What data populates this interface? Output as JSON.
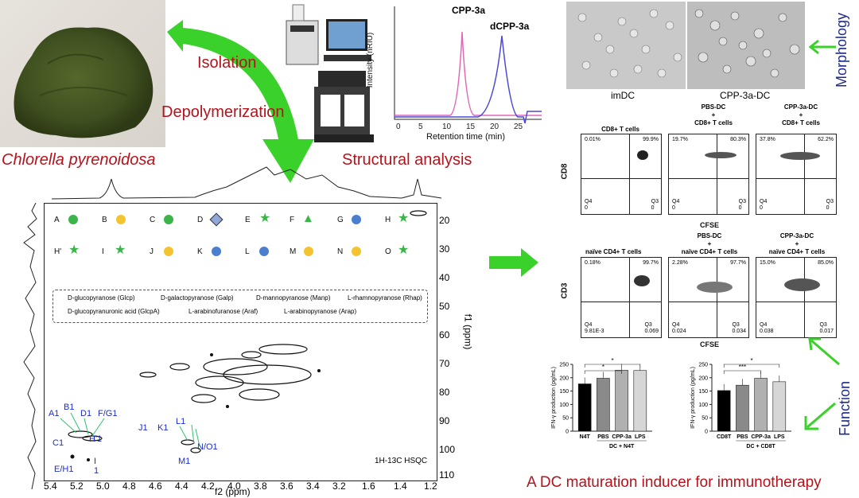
{
  "labels": {
    "organism": "Chlorella pyrenoidosa",
    "step1": "Isolation",
    "step2": "Depolymerization",
    "step3": "Structural analysis",
    "morphology": "Morphology",
    "function": "Function",
    "tagline": "A DC maturation inducer for immunotherapy"
  },
  "hplc": {
    "ylabel": "Intensity (nRIU)",
    "xlabel": "Retention time (min)",
    "peak1": "CPP-3a",
    "peak2": "dCPP-3a",
    "ticks": [
      "0",
      "5",
      "10",
      "15",
      "20",
      "25"
    ],
    "colors": {
      "peak1": "#e066b8",
      "peak2": "#4a4ad6"
    }
  },
  "morph": {
    "left": "imDC",
    "right": "CPP-3a-DC"
  },
  "hsqc": {
    "xlabel": "f2 (ppm)",
    "ylabel": "f1 (ppm)",
    "tag": "1H-13C HSQC",
    "xticks": [
      "5.4",
      "5.2",
      "5.0",
      "4.8",
      "4.6",
      "4.4",
      "4.2",
      "4.0",
      "3.8",
      "3.6",
      "3.4",
      "3.2",
      "1.6",
      "1.4",
      "1.2"
    ],
    "yticks": [
      "20",
      "30",
      "40",
      "50",
      "60",
      "70",
      "80",
      "90",
      "100",
      "110"
    ],
    "residues_row1": [
      "A",
      "B",
      "C",
      "D",
      "E",
      "F",
      "G",
      "H"
    ],
    "residues_row2": [
      "H'",
      "I",
      "J",
      "K",
      "L",
      "M",
      "N",
      "O"
    ],
    "legend": [
      "D-glucopyranose (Glcp)",
      "D-galactopyranose (Galp)",
      "D-mannopyranose (Manp)",
      "L-rhamnopyranose (Rhap)",
      "D-glucopyranuronic acid (GlcpA)",
      "L-arabinofuranose (Araf)",
      "L-arabinopyranose (Arap)"
    ],
    "peaks": [
      "A1",
      "B1",
      "D1",
      "F/G1",
      "C1",
      "H'1",
      "E/H1",
      "I 1",
      "J1",
      "K1",
      "L1",
      "N/O1",
      "M1"
    ]
  },
  "flow_cd8": {
    "ylabel": "CD8",
    "xlabel": "CFSE",
    "panels": [
      {
        "title": "CD8+ T cells",
        "q1": "0.01%",
        "q2": "99.9%",
        "q4": "Q4\n0",
        "q3": "Q3\n0"
      },
      {
        "title": "PBS-DC\n+\nCD8+ T cells",
        "q1": "19.7%",
        "q2": "80.3%",
        "q4": "Q4\n0",
        "q3": "Q3\n0"
      },
      {
        "title": "CPP-3a-DC\n+\nCD8+ T cells",
        "q1": "37.8%",
        "q2": "62.2%",
        "q4": "Q4\n0",
        "q3": "Q3\n0"
      }
    ]
  },
  "flow_cd4": {
    "ylabel": "CD3",
    "xlabel": "CFSE",
    "panels": [
      {
        "title": "naïve CD4+ T cells",
        "q1": "0.18%",
        "q2": "99.7%",
        "q4": "Q4\n9.81E-3",
        "q3": "Q3\n0.069"
      },
      {
        "title": "PBS-DC\n+\nnaïve CD4+ T cells",
        "q1": "2.28%",
        "q2": "97.7%",
        "q4": "Q4\n0.024",
        "q3": "Q3\n0.034"
      },
      {
        "title": "CPP-3a-DC\n+\nnaïve CD4+ T cells",
        "q1": "15.0%",
        "q2": "85.0%",
        "q4": "Q4\n0.038",
        "q3": "Q3\n0.017"
      }
    ]
  },
  "chart_data": [
    {
      "type": "bar",
      "ylabel": "IFN-γ production (pg/mL)",
      "categories": [
        "N4T",
        "PBS",
        "CPP-3a",
        "LPS"
      ],
      "values": [
        177,
        198,
        228,
        227
      ],
      "ylim": [
        0,
        250
      ],
      "yticks": [
        "0",
        "50",
        "100",
        "150",
        "200",
        "250"
      ],
      "group_label": "DC + N4T",
      "sig": [
        "*",
        "*"
      ],
      "colors": [
        "#000000",
        "#8a8a8a",
        "#b0b0b0",
        "#d6d6d6"
      ]
    },
    {
      "type": "bar",
      "ylabel": "IFN-γ production (pg/mL)",
      "categories": [
        "CD8T",
        "PBS",
        "CPP-3a",
        "LPS"
      ],
      "values": [
        152,
        172,
        198,
        185
      ],
      "ylim": [
        0,
        250
      ],
      "yticks": [
        "0",
        "50",
        "100",
        "150",
        "200",
        "250"
      ],
      "group_label": "DC + CD8T",
      "sig": [
        "***",
        "*"
      ],
      "colors": [
        "#000000",
        "#8a8a8a",
        "#b0b0b0",
        "#d6d6d6"
      ]
    }
  ]
}
